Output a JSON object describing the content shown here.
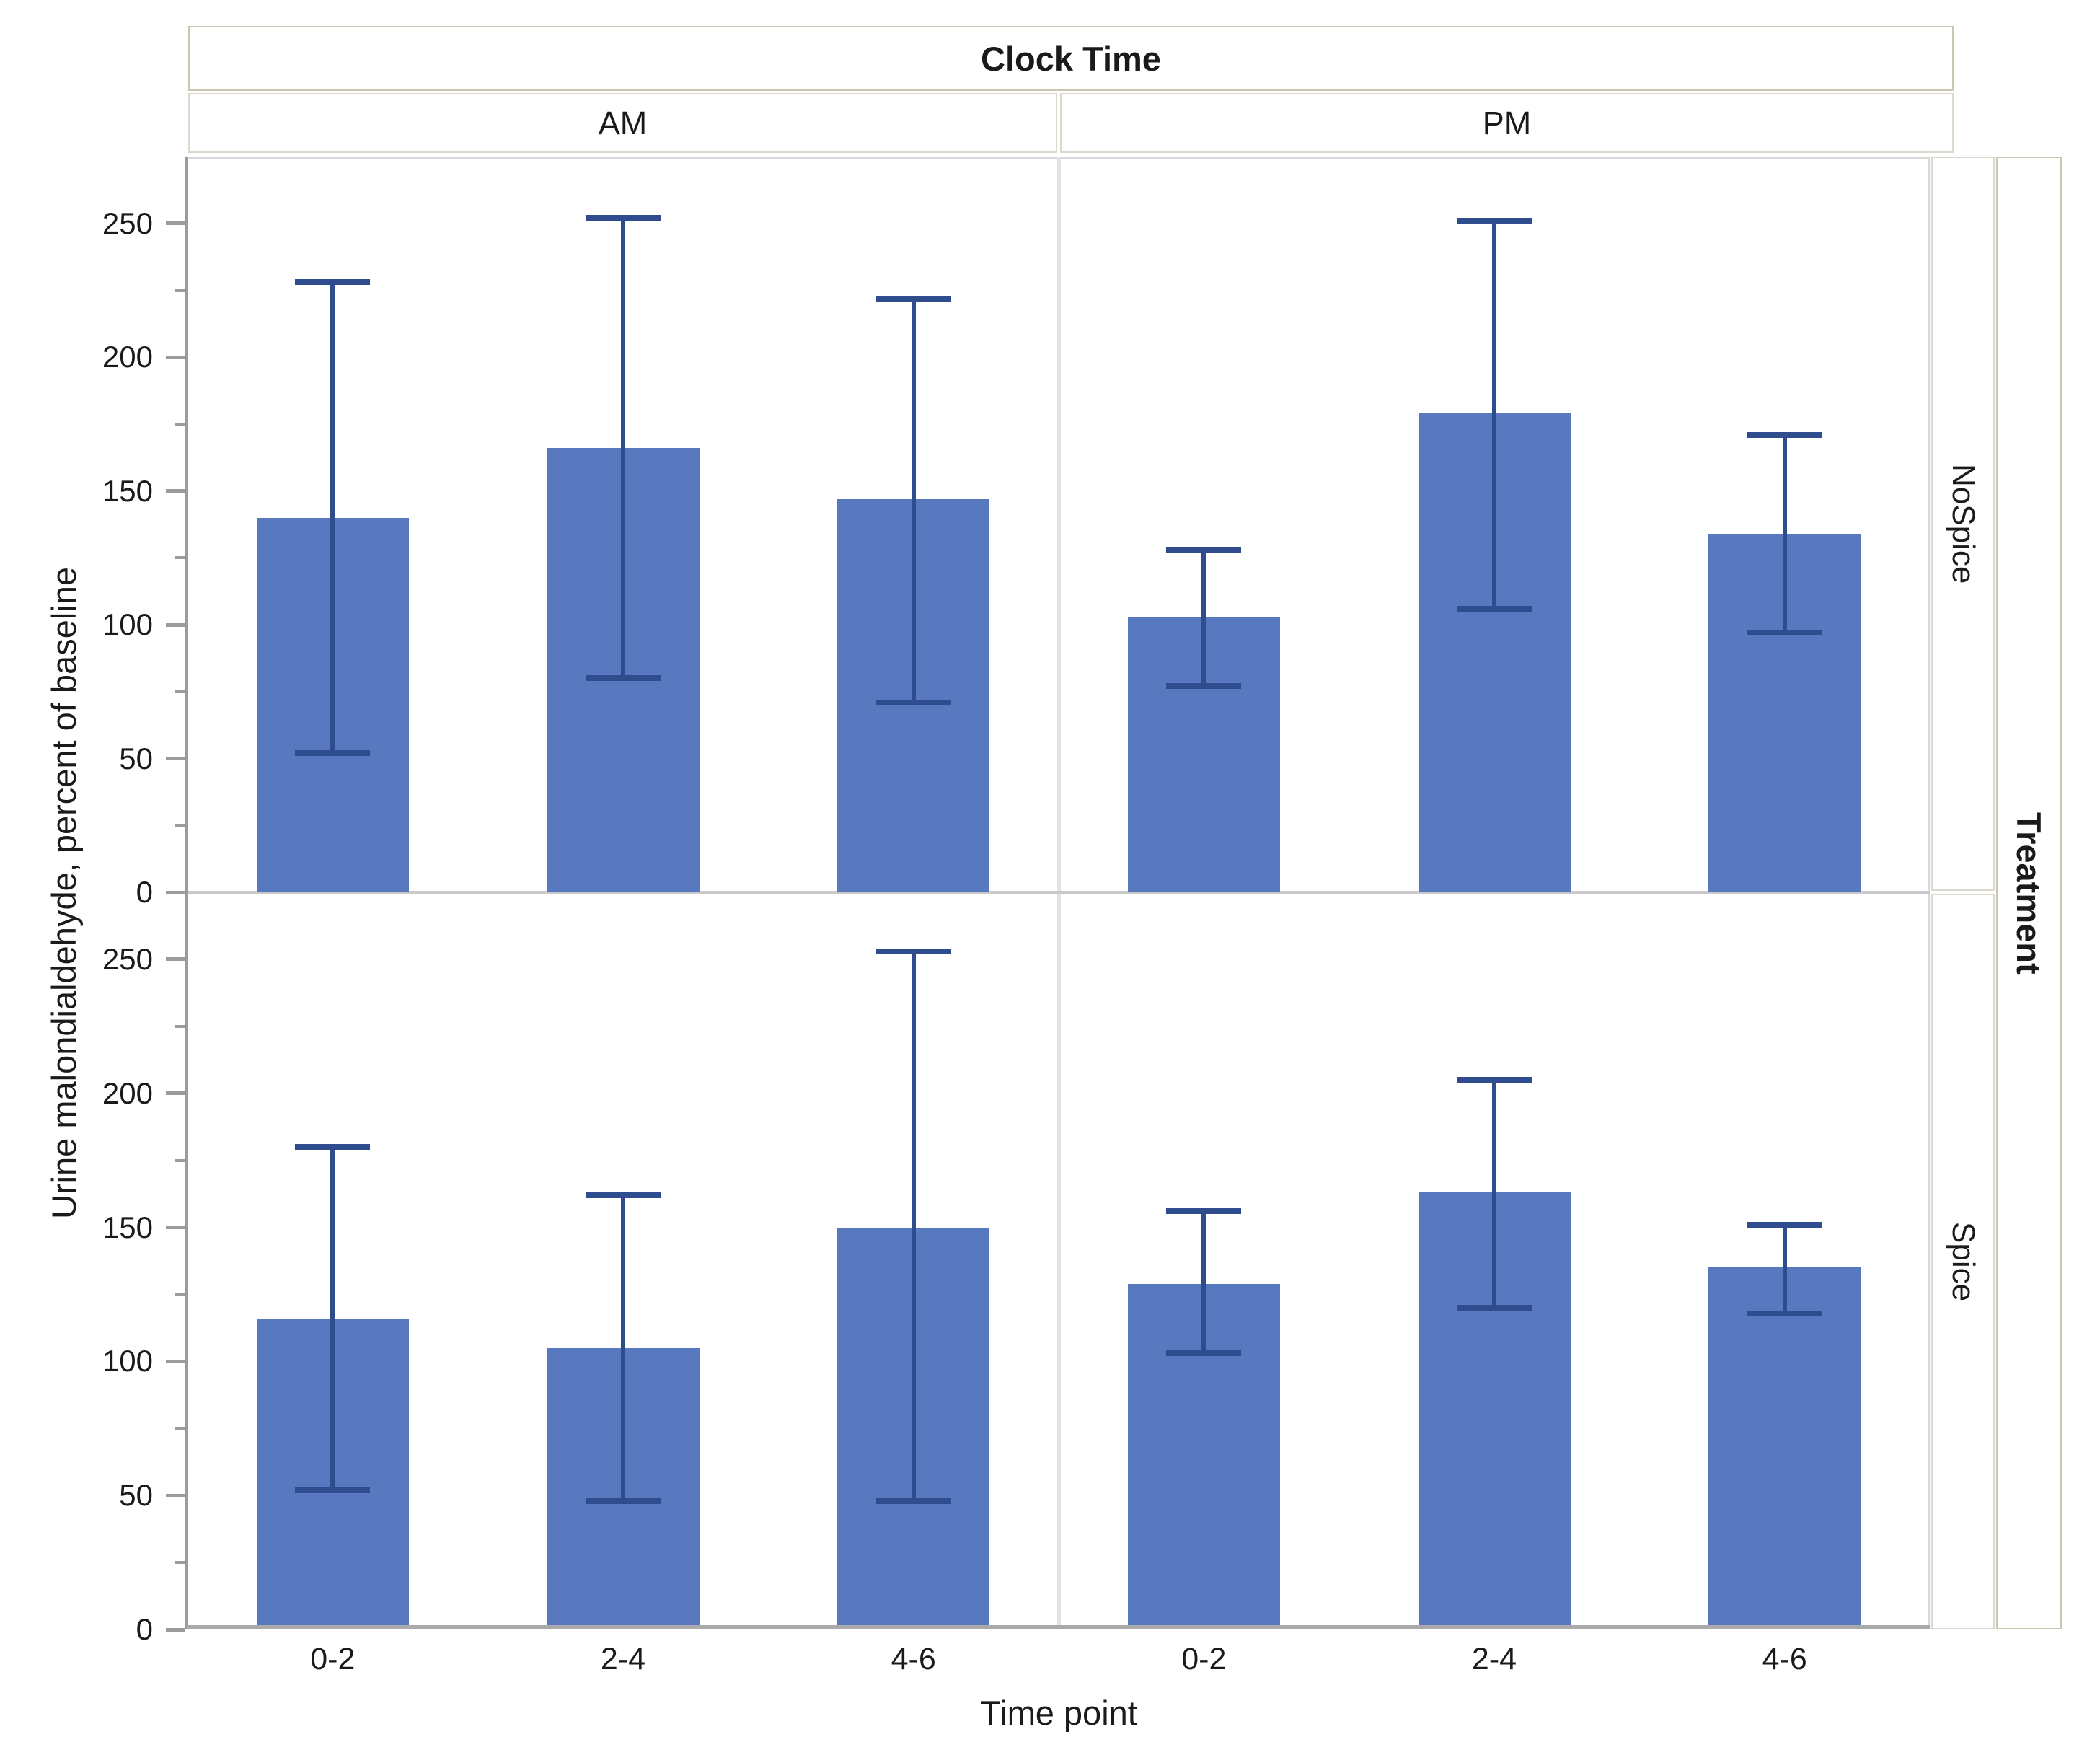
{
  "header": {
    "title": "Clock Time"
  },
  "col_facets": {
    "am": "AM",
    "pm": "PM"
  },
  "row_facet_header": "Treatment",
  "row_facets": {
    "top": "NoSpice",
    "bottom": "Spice"
  },
  "axes": {
    "xlabel": "Time point",
    "ylabel": "Urine malondialdehyde, percent of baseline"
  },
  "colors": {
    "bar_fill": "#5878c0",
    "error_bar": "#2e4c8e",
    "strip_dark_bg": "#dad7c6",
    "strip_light_bg": "#edecdf",
    "axis_line": "#9b9b9b",
    "tick": "#9b9b9b",
    "baseline": "#aaaaaa",
    "panel_border": "#d8d8d8",
    "panel_divider_v": "#e3e3e3",
    "panel_divider_h": "#c9c9c9",
    "text": "#1a1a1a"
  },
  "chart_data": {
    "type": "bar",
    "title": "Clock Time",
    "xlabel": "Time point",
    "ylabel": "Urine malondialdehyde, percent of baseline",
    "categories": [
      "0-2",
      "2-4",
      "4-6"
    ],
    "ylim": [
      0,
      275
    ],
    "yticks_major": [
      0,
      50,
      100,
      150,
      200,
      250
    ],
    "yticks_minor": [
      25,
      75,
      125,
      175,
      225
    ],
    "grid": false,
    "error_bars": true,
    "facets": [
      {
        "row": "NoSpice",
        "col": "AM",
        "values": [
          140,
          166,
          147
        ],
        "err_low": [
          52,
          80,
          71
        ],
        "err_high": [
          228,
          252,
          222
        ]
      },
      {
        "row": "NoSpice",
        "col": "PM",
        "values": [
          103,
          179,
          134
        ],
        "err_low": [
          77,
          106,
          97
        ],
        "err_high": [
          128,
          251,
          171
        ]
      },
      {
        "row": "Spice",
        "col": "AM",
        "values": [
          116,
          105,
          150
        ],
        "err_low": [
          52,
          48,
          48
        ],
        "err_high": [
          180,
          162,
          253
        ]
      },
      {
        "row": "Spice",
        "col": "PM",
        "values": [
          129,
          163,
          135
        ],
        "err_low": [
          103,
          120,
          118
        ],
        "err_high": [
          156,
          205,
          151
        ]
      }
    ]
  }
}
